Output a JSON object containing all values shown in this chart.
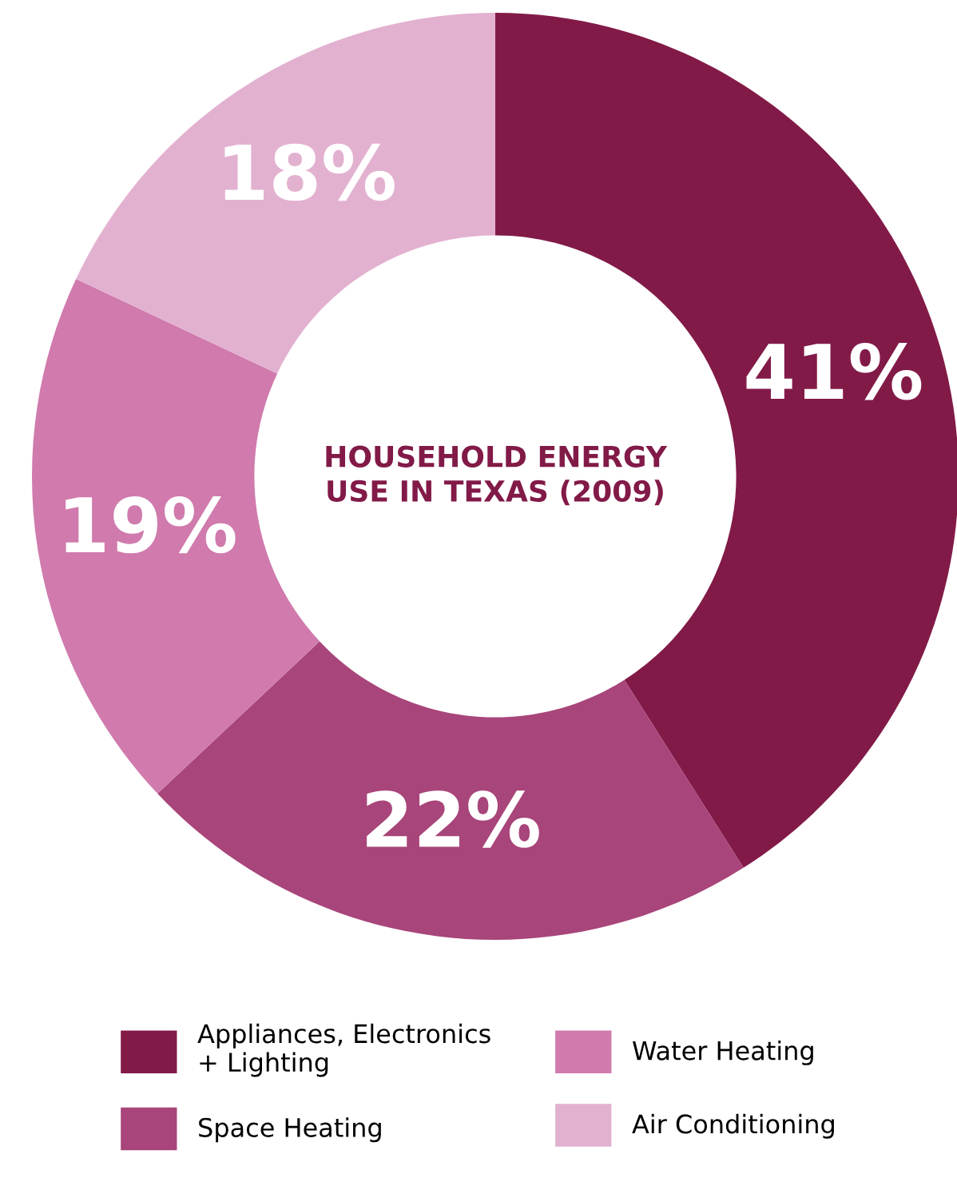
{
  "chart_data": {
    "type": "donut",
    "title": "HOUSEHOLD ENERGY\nUSE IN TEXAS (2009)",
    "categories": [
      "Appliances, Electronics\n+ Lighting",
      "Space Heating",
      "Water Heating",
      "Air Conditioning"
    ],
    "values": [
      41,
      22,
      19,
      18
    ],
    "colors": [
      "#821a48",
      "#a8457a",
      "#d07aad",
      "#e3b1d0"
    ],
    "value_labels": [
      "41%",
      "22%",
      "19%",
      "18%"
    ],
    "legend": "bottom"
  }
}
